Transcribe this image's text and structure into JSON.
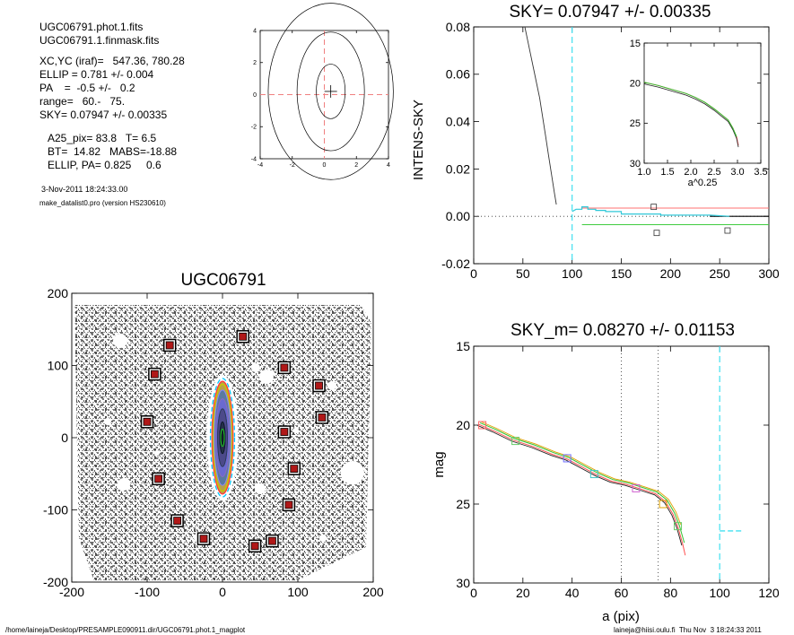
{
  "info_block": {
    "file1": "UGC06791.phot.1.fits",
    "file2": "UGC06791.1.finmask.fits",
    "lines": [
      "XC,YC (iraf)=   547.36, 780.28",
      "ELLIP = 0.781 +/- 0.004",
      "PA    =  -0.5 +/-   0.2",
      "range=   60.-   75.",
      "SKY= 0.07947 +/- 0.00335"
    ],
    "params": [
      "A25_pix= 83.8   T= 6.5",
      "BT=  14.82   MABS=-18.88",
      "ELLIP, PA= 0.825     0.6"
    ],
    "date": "3-Nov-2011 18:24:33.00",
    "program": "make_datalist0.pro (version HS230610)"
  },
  "footer": {
    "path": "/home/laineja/Desktop/PRESAMPLE090911.dir/UGC06791.phot.1_magplot",
    "user": "laineja@hiisi.oulu.fi  Thu Nov  3 18:24:33 2011"
  },
  "chart_data": [
    {
      "id": "contour",
      "type": "contour",
      "x_ticks": [
        "-4",
        "-2",
        "0",
        "2",
        "4"
      ],
      "y_ticks": [
        "-4",
        "-2",
        "0",
        "2",
        "4"
      ],
      "xlim": [
        -4,
        4
      ],
      "ylim": [
        -4,
        4
      ],
      "center": [
        0.4,
        0.2
      ],
      "contours": [
        {
          "a": 0.9,
          "b": 1.7
        },
        {
          "a": 2.1,
          "b": 3.7
        },
        {
          "a": 3.9,
          "b": 5.5
        }
      ]
    },
    {
      "id": "sky",
      "type": "line",
      "title": "SKY= 0.07947 +/- 0.00335",
      "ylabel": "INTENS-SKY",
      "xlim": [
        0,
        300
      ],
      "ylim": [
        -0.02,
        0.08
      ],
      "x_ticks": [
        "0",
        "50",
        "100",
        "150",
        "200",
        "250",
        "300"
      ],
      "y_ticks": [
        "-0.02",
        "0.00",
        "0.02",
        "0.04",
        "0.06",
        "0.08"
      ],
      "profile": [
        [
          52,
          0.08
        ],
        [
          55,
          0.074
        ],
        [
          58,
          0.068
        ],
        [
          61,
          0.062
        ],
        [
          64,
          0.056
        ],
        [
          67,
          0.05
        ],
        [
          70,
          0.042
        ],
        [
          73,
          0.034
        ],
        [
          76,
          0.026
        ],
        [
          79,
          0.018
        ],
        [
          82,
          0.01
        ],
        [
          84,
          0.005
        ]
      ],
      "sky_step": [
        [
          100,
          0.002
        ],
        [
          104,
          0.003
        ],
        [
          110,
          0.003
        ],
        [
          110,
          0.004
        ],
        [
          116,
          0.004
        ],
        [
          116,
          0.003
        ],
        [
          124,
          0.003
        ],
        [
          124,
          0.0025
        ],
        [
          134,
          0.0025
        ],
        [
          134,
          0.002
        ],
        [
          150,
          0.002
        ],
        [
          150,
          0.001
        ],
        [
          190,
          0.001
        ],
        [
          190,
          0.0005
        ],
        [
          240,
          0.0005
        ],
        [
          260,
          0.0
        ]
      ],
      "red_level": 0.0035,
      "green_level": -0.0035,
      "vline_x": 100,
      "squares": [
        [
          183,
          0.004
        ],
        [
          186,
          -0.007
        ],
        [
          258,
          -0.006
        ]
      ],
      "inset": {
        "xlabel": "a^0.25",
        "xlim": [
          1.0,
          3.5
        ],
        "ylim": [
          15,
          30
        ],
        "x_ticks": [
          "1.0",
          "1.5",
          "2.0",
          "2.5",
          "3.0",
          "3.5"
        ],
        "y_ticks": [
          "15",
          "20",
          "25",
          "30"
        ],
        "curve": [
          [
            1.0,
            19.9
          ],
          [
            1.3,
            20.3
          ],
          [
            1.6,
            20.8
          ],
          [
            1.9,
            21.3
          ],
          [
            2.1,
            21.8
          ],
          [
            2.3,
            22.4
          ],
          [
            2.5,
            23.2
          ],
          [
            2.65,
            23.9
          ],
          [
            2.8,
            24.6
          ],
          [
            2.9,
            25.6
          ],
          [
            2.98,
            26.7
          ],
          [
            3.02,
            27.8
          ]
        ]
      }
    },
    {
      "id": "image",
      "type": "scatter",
      "title": "UGC06791",
      "xlim": [
        -200,
        200
      ],
      "ylim": [
        -200,
        200
      ],
      "x_ticks": [
        "-200",
        "-100",
        "0",
        "100",
        "200"
      ],
      "y_ticks": [
        "-200",
        "-100",
        "0",
        "100",
        "200"
      ],
      "masked_stars": [
        [
          -70,
          128
        ],
        [
          27,
          140
        ],
        [
          -90,
          88
        ],
        [
          82,
          97
        ],
        [
          128,
          72
        ],
        [
          -100,
          22
        ],
        [
          132,
          28
        ],
        [
          82,
          8
        ],
        [
          -85,
          -57
        ],
        [
          95,
          -43
        ],
        [
          -60,
          -115
        ],
        [
          88,
          -93
        ],
        [
          -25,
          -140
        ],
        [
          43,
          -150
        ],
        [
          66,
          -143
        ]
      ],
      "galaxy_ellipses": [
        {
          "a": 82,
          "b": 16,
          "color": "#00c8ff"
        },
        {
          "a": 78,
          "b": 14,
          "color": "#ff3b3b"
        },
        {
          "a": 74,
          "b": 12.5,
          "color": "#c8c800"
        },
        {
          "a": 66,
          "b": 11,
          "color": "#8888ff"
        },
        {
          "a": 54,
          "b": 9,
          "color": "#8a6cbf"
        },
        {
          "a": 40,
          "b": 6.5,
          "color": "#2c3a5a"
        },
        {
          "a": 22,
          "b": 3.6,
          "color": "#0e1a2a"
        },
        {
          "a": 12,
          "b": 2.4,
          "color": "#22cc22"
        }
      ]
    },
    {
      "id": "mag",
      "type": "line",
      "title": "SKY_m=  0.08270 +/- 0.01153",
      "xlabel": "a (pix)",
      "ylabel": "mag",
      "xlim": [
        0,
        120
      ],
      "ylim": [
        15,
        30
      ],
      "x_ticks": [
        "0",
        "20",
        "40",
        "60",
        "80",
        "100",
        "120"
      ],
      "y_ticks": [
        "15",
        "20",
        "25",
        "30"
      ],
      "dotted_x": [
        60,
        75
      ],
      "dashed_x": 100,
      "dashed_h": {
        "x": [
          100,
          109
        ],
        "y": 26.7
      },
      "profile": [
        [
          2,
          19.9
        ],
        [
          8,
          20.3
        ],
        [
          16,
          20.9
        ],
        [
          24,
          21.3
        ],
        [
          32,
          21.8
        ],
        [
          38,
          22.1
        ],
        [
          44,
          22.6
        ],
        [
          50,
          23.1
        ],
        [
          56,
          23.5
        ],
        [
          62,
          23.7
        ],
        [
          68,
          24.0
        ],
        [
          74,
          24.3
        ],
        [
          78,
          24.8
        ],
        [
          81,
          25.6
        ],
        [
          83,
          26.4
        ],
        [
          85,
          27.5
        ],
        [
          86,
          28.2
        ]
      ],
      "squares": [
        {
          "x": 3.5,
          "y": 20.0,
          "color": "#ff6666"
        },
        {
          "x": 17,
          "y": 21.0,
          "color": "#66cc66"
        },
        {
          "x": 38,
          "y": 22.1,
          "color": "#7070ff"
        },
        {
          "x": 49,
          "y": 23.1,
          "color": "#40c8c8"
        },
        {
          "x": 66,
          "y": 24.0,
          "color": "#d060d0"
        },
        {
          "x": 77,
          "y": 25.0,
          "color": "#e0a000"
        },
        {
          "x": 83,
          "y": 26.4,
          "color": "#66cc66"
        }
      ]
    }
  ]
}
